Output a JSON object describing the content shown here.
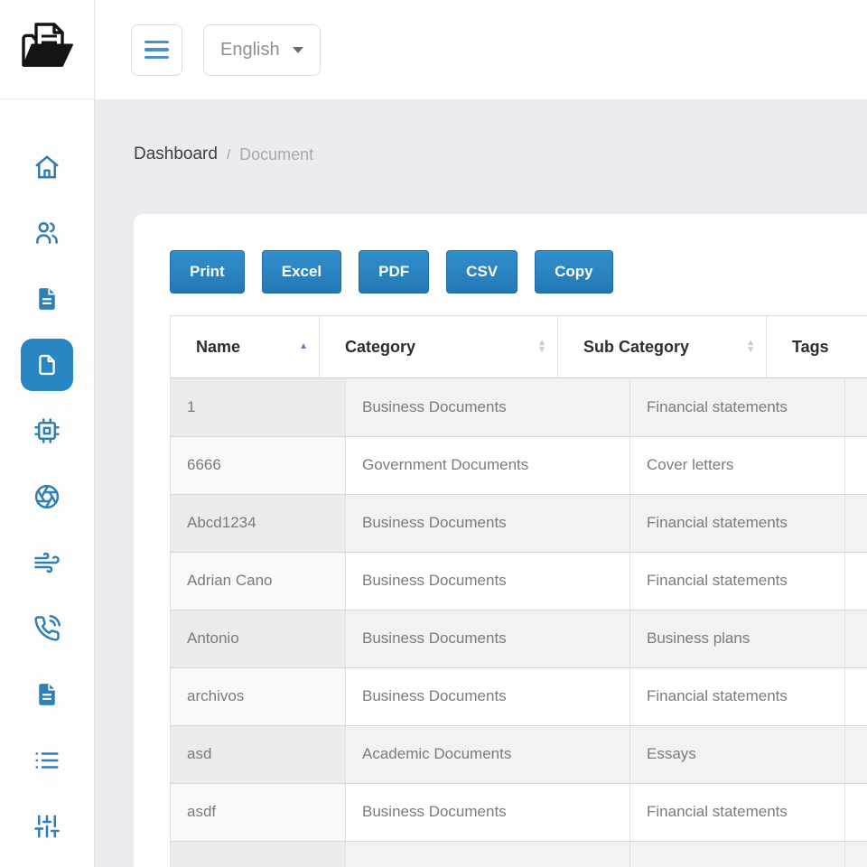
{
  "brand": {
    "logo_icon": "open-folder-document-icon"
  },
  "topbar": {
    "menu_icon": "hamburger-menu-icon",
    "language_selector": {
      "value": "English",
      "caret_icon": "caret-down-icon"
    }
  },
  "sidebar": {
    "active_color": "#2a85c3",
    "icon_color": "#2f7fb5",
    "items": [
      {
        "id": "home",
        "icon": "home-icon",
        "active": false
      },
      {
        "id": "users",
        "icon": "users-icon",
        "active": false
      },
      {
        "id": "file-text",
        "icon": "file-text-icon",
        "active": false
      },
      {
        "id": "file",
        "icon": "file-icon",
        "active": true
      },
      {
        "id": "cpu",
        "icon": "cpu-icon",
        "active": false
      },
      {
        "id": "aperture",
        "icon": "aperture-icon",
        "active": false
      },
      {
        "id": "wind",
        "icon": "wind-icon",
        "active": false
      },
      {
        "id": "phone",
        "icon": "phone-call-icon",
        "active": false
      },
      {
        "id": "file-text-2",
        "icon": "file-text-icon",
        "active": false
      },
      {
        "id": "list",
        "icon": "list-icon",
        "active": false
      },
      {
        "id": "sliders",
        "icon": "sliders-icon",
        "active": false
      }
    ]
  },
  "breadcrumb": {
    "items": [
      {
        "label": "Dashboard",
        "muted": false
      },
      {
        "label": "Document",
        "muted": true
      }
    ],
    "separator": "/"
  },
  "toolbar": {
    "buttons": [
      {
        "label": "Print"
      },
      {
        "label": "Excel"
      },
      {
        "label": "PDF"
      },
      {
        "label": "CSV"
      },
      {
        "label": "Copy"
      }
    ]
  },
  "table": {
    "columns": [
      {
        "label": "Name",
        "sort": "asc"
      },
      {
        "label": "Category",
        "sort": "both"
      },
      {
        "label": "Sub Category",
        "sort": "both"
      },
      {
        "label": "Tags",
        "sort": "none"
      }
    ],
    "rows": [
      [
        "1",
        "Business Documents",
        "Financial statements",
        ""
      ],
      [
        "6666",
        "Government Documents",
        "Cover letters",
        ""
      ],
      [
        "Abcd1234",
        "Business Documents",
        "Financial statements",
        ""
      ],
      [
        "Adrian Cano",
        "Business Documents",
        "Financial statements",
        ""
      ],
      [
        "Antonio",
        "Business Documents",
        "Business plans",
        ""
      ],
      [
        "archivos",
        "Business Documents",
        "Financial statements",
        ""
      ],
      [
        "asd",
        "Academic Documents",
        "Essays",
        ""
      ],
      [
        "asdf",
        "Business Documents",
        "Financial statements",
        ""
      ],
      [
        "",
        "",
        "",
        ""
      ]
    ]
  },
  "colors": {
    "accent_blue": "#2a85c3",
    "content_background": "#ececf0",
    "sort_active_arrow": "#6d6ccf",
    "sort_idle_arrow": "#c9c9c9",
    "row_stripe": "#f2f2f3"
  }
}
